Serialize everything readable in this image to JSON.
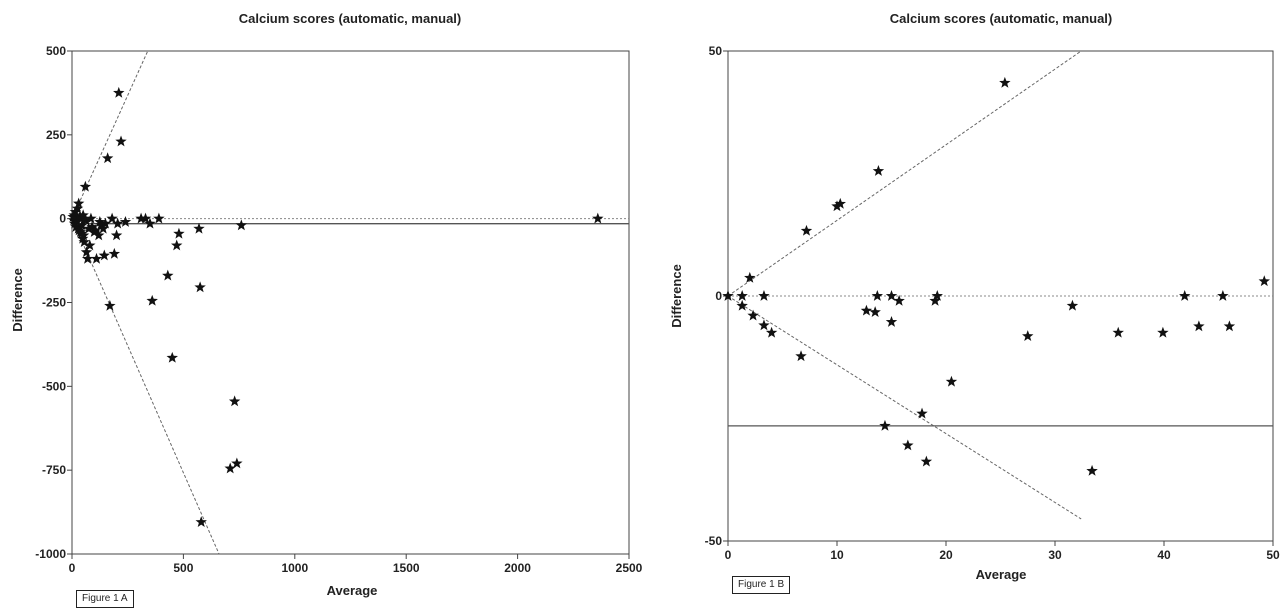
{
  "chart_data": [
    {
      "type": "scatter",
      "title": "Calcium scores (automatic, manual)",
      "xlabel": "Average",
      "ylabel": "Difference",
      "xlim": [
        0,
        2500
      ],
      "ylim": [
        -1000,
        500
      ],
      "xticks": [
        "0",
        "500",
        "1000",
        "1500",
        "2000",
        "2500"
      ],
      "yticks": [
        "500",
        "250",
        "0",
        "-250",
        "-500",
        "-750",
        "-1000"
      ],
      "marker": "star",
      "colors": {
        "points": "#111111",
        "mean_line": "#555555",
        "zero_line": "#888888",
        "limit_lines": "#666666"
      },
      "mean_difference": -15,
      "zero_line": 0,
      "limit_lines": [
        [
          0,
          0,
          340,
          500
        ],
        [
          0,
          0,
          660,
          -1000
        ]
      ],
      "points": [
        [
          5,
          5
        ],
        [
          8,
          -5
        ],
        [
          10,
          10
        ],
        [
          12,
          -15
        ],
        [
          15,
          20
        ],
        [
          18,
          -25
        ],
        [
          20,
          0
        ],
        [
          22,
          -10
        ],
        [
          25,
          30
        ],
        [
          28,
          -30
        ],
        [
          30,
          45
        ],
        [
          32,
          -35
        ],
        [
          35,
          5
        ],
        [
          38,
          -40
        ],
        [
          40,
          0
        ],
        [
          42,
          -45
        ],
        [
          45,
          -20
        ],
        [
          48,
          -60
        ],
        [
          50,
          10
        ],
        [
          52,
          -50
        ],
        [
          55,
          -70
        ],
        [
          60,
          95
        ],
        [
          62,
          -5
        ],
        [
          65,
          -100
        ],
        [
          70,
          -120
        ],
        [
          75,
          -30
        ],
        [
          80,
          -80
        ],
        [
          85,
          0
        ],
        [
          90,
          -25
        ],
        [
          100,
          -40
        ],
        [
          105,
          -35
        ],
        [
          110,
          -120
        ],
        [
          120,
          -50
        ],
        [
          125,
          -10
        ],
        [
          130,
          -20
        ],
        [
          140,
          -30
        ],
        [
          145,
          -110
        ],
        [
          150,
          -15
        ],
        [
          160,
          180
        ],
        [
          170,
          -260
        ],
        [
          180,
          0
        ],
        [
          190,
          -105
        ],
        [
          200,
          -50
        ],
        [
          205,
          -15
        ],
        [
          210,
          375
        ],
        [
          220,
          230
        ],
        [
          240,
          -10
        ],
        [
          310,
          0
        ],
        [
          330,
          0
        ],
        [
          350,
          -15
        ],
        [
          360,
          -245
        ],
        [
          390,
          0
        ],
        [
          430,
          -170
        ],
        [
          450,
          -415
        ],
        [
          470,
          -80
        ],
        [
          480,
          -45
        ],
        [
          570,
          -30
        ],
        [
          575,
          -205
        ],
        [
          580,
          -905
        ],
        [
          710,
          -745
        ],
        [
          730,
          -545
        ],
        [
          740,
          -730
        ],
        [
          760,
          -20
        ],
        [
          2360,
          0
        ]
      ],
      "caption": "Figure 1 A"
    },
    {
      "type": "scatter",
      "title": "Calcium scores (automatic, manual)",
      "xlabel": "Average",
      "ylabel": "Difference",
      "xlim": [
        0,
        50
      ],
      "ylim": [
        -50,
        50
      ],
      "xticks": [
        "0",
        "10",
        "20",
        "30",
        "40",
        "50"
      ],
      "yticks": [
        "50",
        "0",
        "-50"
      ],
      "marker": "star",
      "colors": {
        "points": "#111111",
        "mean_line": "#555555",
        "zero_line": "#888888",
        "limit_lines": "#666666"
      },
      "mean_difference": -26.5,
      "zero_line": 0,
      "limit_lines": [
        [
          0,
          0,
          32.4,
          50
        ],
        [
          0,
          0,
          32.4,
          -45.5
        ]
      ],
      "points": [
        [
          0,
          0
        ],
        [
          1.3,
          0
        ],
        [
          1.3,
          -2
        ],
        [
          2.0,
          3.7
        ],
        [
          2.3,
          -4
        ],
        [
          3.3,
          -6
        ],
        [
          3.3,
          0
        ],
        [
          4.0,
          -7.5
        ],
        [
          6.7,
          -12.3
        ],
        [
          7.2,
          13.3
        ],
        [
          10.0,
          18.3
        ],
        [
          10.3,
          18.8
        ],
        [
          12.7,
          -3
        ],
        [
          13.5,
          -3.3
        ],
        [
          13.7,
          0
        ],
        [
          13.8,
          25.5
        ],
        [
          14.4,
          -26.5
        ],
        [
          15.0,
          -5.3
        ],
        [
          15.0,
          0
        ],
        [
          15.7,
          -1
        ],
        [
          16.5,
          -30.5
        ],
        [
          17.8,
          -24
        ],
        [
          18.2,
          -33.8
        ],
        [
          19.0,
          -1
        ],
        [
          19.2,
          0
        ],
        [
          20.5,
          -17.5
        ],
        [
          25.4,
          43.5
        ],
        [
          27.5,
          -8.2
        ],
        [
          31.6,
          -2
        ],
        [
          33.4,
          -35.7
        ],
        [
          35.8,
          -7.5
        ],
        [
          39.9,
          -7.5
        ],
        [
          41.9,
          0
        ],
        [
          43.2,
          -6.2
        ],
        [
          45.4,
          0
        ],
        [
          46.0,
          -6.2
        ],
        [
          49.2,
          3
        ]
      ],
      "caption": "Figure 1 B"
    }
  ]
}
